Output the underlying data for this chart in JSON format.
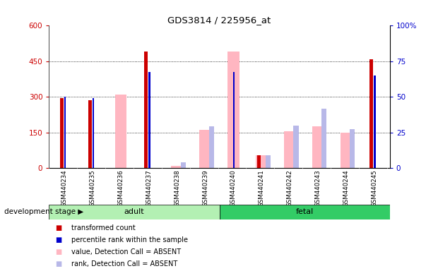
{
  "title": "GDS3814 / 225956_at",
  "categories": [
    "GSM440234",
    "GSM440235",
    "GSM440236",
    "GSM440237",
    "GSM440238",
    "GSM440239",
    "GSM440240",
    "GSM440241",
    "GSM440242",
    "GSM440243",
    "GSM440244",
    "GSM440245"
  ],
  "adult_count": 6,
  "fetal_count": 6,
  "red_bars": [
    295,
    285,
    0,
    490,
    0,
    0,
    0,
    55,
    0,
    0,
    0,
    460
  ],
  "blue_bars": [
    300,
    295,
    0,
    405,
    0,
    0,
    405,
    0,
    0,
    0,
    0,
    390
  ],
  "pink_bars": [
    0,
    0,
    310,
    0,
    10,
    160,
    490,
    55,
    155,
    175,
    148,
    0
  ],
  "lavender_bars": [
    0,
    0,
    0,
    0,
    25,
    175,
    0,
    55,
    180,
    250,
    165,
    0
  ],
  "ylim_left": [
    0,
    600
  ],
  "ylim_right": [
    0,
    100
  ],
  "yticks_left": [
    0,
    150,
    300,
    450,
    600
  ],
  "yticks_right": [
    0,
    25,
    50,
    75,
    100
  ],
  "adult_label": "adult",
  "fetal_label": "fetal",
  "dev_stage_label": "development stage",
  "legend_items": [
    {
      "label": "transformed count",
      "color": "#cc0000"
    },
    {
      "label": "percentile rank within the sample",
      "color": "#0000cc"
    },
    {
      "label": "value, Detection Call = ABSENT",
      "color": "#ffb6c1"
    },
    {
      "label": "rank, Detection Call = ABSENT",
      "color": "#b8b8e8"
    }
  ],
  "adult_bg": "#b3f0b3",
  "fetal_bg": "#33cc66",
  "tick_bg": "#d3d3d3",
  "red_color": "#cc0000",
  "blue_color": "#0000cc",
  "pink_color": "#ffb6c1",
  "lavender_color": "#b8b8e8"
}
